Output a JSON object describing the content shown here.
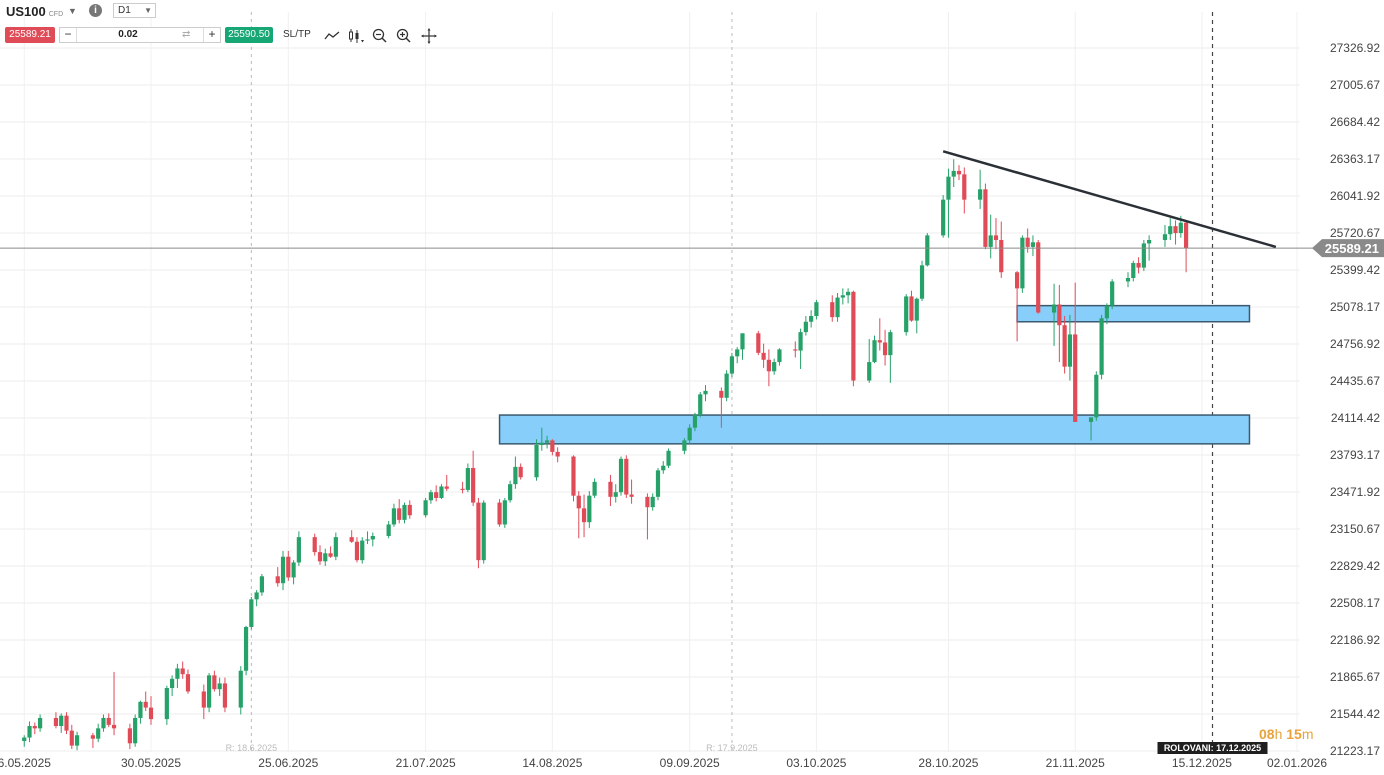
{
  "header": {
    "symbol": "US100",
    "symbol_type": "CFD",
    "timeframe": "D1",
    "sell_price": "25589.21",
    "buy_price": "25590.50",
    "quantity": "0.02",
    "sltp_label": "SL/TP",
    "icons": [
      "info-icon",
      "line-chart-icon",
      "candlestick-icon",
      "zoom-out-icon",
      "zoom-in-icon",
      "crosshair-move-icon"
    ]
  },
  "colors": {
    "bull": "#26a269",
    "bear": "#e04b58",
    "zone_fill": "#87cefa",
    "zone_stroke": "#3c5a6e",
    "trendline": "#2b2f36",
    "sell": "#e04b58",
    "buy": "#17a774",
    "countdown": "#e8a33c"
  },
  "countdown": {
    "hours": "08",
    "h": "h",
    "minutes": "15",
    "m": "m"
  },
  "chart_data": {
    "type": "candlestick",
    "y_axis_ticks": [
      "27326.92",
      "27005.67",
      "26684.42",
      "26363.17",
      "26041.92",
      "25720.67",
      "25399.42",
      "25078.17",
      "24756.92",
      "24435.67",
      "24114.42",
      "23793.17",
      "23471.92",
      "23150.67",
      "22829.42",
      "22508.17",
      "22186.92",
      "21865.67",
      "21544.42",
      "21223.17"
    ],
    "x_axis_ticks": [
      "6.05.2025",
      "30.05.2025",
      "25.06.2025",
      "21.07.2025",
      "14.08.2025",
      "09.09.2025",
      "03.10.2025",
      "28.10.2025",
      "21.11.2025",
      "15.12.2025",
      "02.01.2026"
    ],
    "current_price": 25589.21,
    "current_price_label": "25589.21",
    "markers": [
      {
        "label": "R: 18.6.2025",
        "date": "18.6.2025"
      },
      {
        "label": "R: 17.9.2025",
        "date": "17.9.2025"
      },
      {
        "label": "ROLOVANI: 17.12.2025",
        "date": "17.12.2025"
      }
    ],
    "candles": [
      [
        21310,
        21360,
        21260,
        21340
      ],
      [
        21340,
        21480,
        21300,
        21440
      ],
      [
        21440,
        21470,
        21370,
        21420
      ],
      [
        21420,
        21540,
        21390,
        21510
      ],
      [
        21510,
        21560,
        21420,
        21440
      ],
      [
        21440,
        21550,
        21380,
        21530
      ],
      [
        21530,
        21560,
        21370,
        21400
      ],
      [
        21400,
        21450,
        21240,
        21270
      ],
      [
        21270,
        21390,
        21230,
        21360
      ],
      [
        21360,
        21380,
        21250,
        21330
      ],
      [
        21330,
        21460,
        21300,
        21420
      ],
      [
        21420,
        21540,
        21390,
        21510
      ],
      [
        21510,
        21550,
        21430,
        21450
      ],
      [
        21450,
        21910,
        21360,
        21420
      ],
      [
        21420,
        21460,
        21240,
        21290
      ],
      [
        21290,
        21540,
        21260,
        21510
      ],
      [
        21510,
        21660,
        21460,
        21650
      ],
      [
        21650,
        21740,
        21570,
        21600
      ],
      [
        21600,
        21700,
        21450,
        21500
      ],
      [
        21500,
        21790,
        21450,
        21770
      ],
      [
        21770,
        21880,
        21700,
        21850
      ],
      [
        21850,
        21980,
        21770,
        21940
      ],
      [
        21940,
        22000,
        21850,
        21890
      ],
      [
        21890,
        21930,
        21720,
        21740
      ],
      [
        21740,
        21800,
        21500,
        21600
      ],
      [
        21600,
        21900,
        21560,
        21880
      ],
      [
        21880,
        21920,
        21740,
        21760
      ],
      [
        21760,
        21860,
        21700,
        21810
      ],
      [
        21810,
        21860,
        21560,
        21600
      ],
      [
        21600,
        21960,
        21540,
        21920
      ],
      [
        21920,
        22310,
        21880,
        22300
      ],
      [
        22300,
        22560,
        22280,
        22540
      ],
      [
        22540,
        22620,
        22480,
        22600
      ],
      [
        22600,
        22760,
        22570,
        22740
      ],
      [
        22740,
        22820,
        22650,
        22680
      ],
      [
        22680,
        22960,
        22620,
        22910
      ],
      [
        22910,
        22960,
        22700,
        22730
      ],
      [
        22730,
        22880,
        22670,
        22860
      ],
      [
        22860,
        23130,
        22830,
        23080
      ],
      [
        23080,
        23110,
        22920,
        22950
      ],
      [
        22950,
        23010,
        22840,
        22870
      ],
      [
        22870,
        22980,
        22830,
        22940
      ],
      [
        22940,
        23000,
        22900,
        22910
      ],
      [
        22910,
        23120,
        22880,
        23080
      ],
      [
        23080,
        23140,
        23030,
        23040
      ],
      [
        23040,
        23080,
        22860,
        22880
      ],
      [
        22880,
        23080,
        22850,
        23050
      ],
      [
        23050,
        23130,
        23020,
        23060
      ],
      [
        23060,
        23120,
        23000,
        23090
      ],
      [
        23090,
        23220,
        23070,
        23190
      ],
      [
        23190,
        23370,
        23170,
        23330
      ],
      [
        23330,
        23410,
        23200,
        23230
      ],
      [
        23230,
        23380,
        23200,
        23360
      ],
      [
        23360,
        23400,
        23240,
        23270
      ],
      [
        23270,
        23420,
        23250,
        23400
      ],
      [
        23400,
        23490,
        23370,
        23470
      ],
      [
        23470,
        23530,
        23390,
        23420
      ],
      [
        23420,
        23540,
        23410,
        23520
      ],
      [
        23520,
        23620,
        23480,
        23500
      ],
      [
        23500,
        23560,
        23460,
        23490
      ],
      [
        23490,
        23720,
        23470,
        23680
      ],
      [
        23680,
        23830,
        23350,
        23380
      ],
      [
        23380,
        23420,
        22810,
        22880
      ],
      [
        22880,
        23400,
        22850,
        23380
      ],
      [
        23380,
        23410,
        23170,
        23190
      ],
      [
        23190,
        23420,
        23160,
        23400
      ],
      [
        23400,
        23570,
        23380,
        23540
      ],
      [
        23540,
        23780,
        23500,
        23690
      ],
      [
        23690,
        23720,
        23580,
        23600
      ],
      [
        23600,
        23930,
        23570,
        23880
      ],
      [
        23880,
        24030,
        23830,
        23900
      ],
      [
        23900,
        23960,
        23850,
        23920
      ],
      [
        23920,
        23930,
        23790,
        23820
      ],
      [
        23820,
        23860,
        23730,
        23780
      ],
      [
        23780,
        23790,
        23390,
        23440
      ],
      [
        23440,
        23480,
        23070,
        23330
      ],
      [
        23330,
        23450,
        23080,
        23210
      ],
      [
        23210,
        23480,
        23160,
        23440
      ],
      [
        23440,
        23590,
        23420,
        23560
      ],
      [
        23560,
        23620,
        23350,
        23430
      ],
      [
        23430,
        23540,
        23380,
        23470
      ],
      [
        23470,
        23780,
        23440,
        23760
      ],
      [
        23760,
        23790,
        23420,
        23450
      ],
      [
        23450,
        23580,
        23370,
        23430
      ],
      [
        23430,
        23460,
        23060,
        23340
      ],
      [
        23340,
        23460,
        23310,
        23430
      ],
      [
        23430,
        23680,
        23400,
        23660
      ],
      [
        23660,
        23740,
        23630,
        23700
      ],
      [
        23700,
        23850,
        23680,
        23830
      ],
      [
        23830,
        23940,
        23800,
        23920
      ],
      [
        23920,
        24060,
        23890,
        24030
      ],
      [
        24030,
        24160,
        24000,
        24140
      ],
      [
        24140,
        24340,
        24120,
        24320
      ],
      [
        24320,
        24400,
        24260,
        24350
      ],
      [
        24350,
        24380,
        24030,
        24290
      ],
      [
        24290,
        24530,
        24260,
        24500
      ],
      [
        24500,
        24680,
        24470,
        24650
      ],
      [
        24650,
        24730,
        24590,
        24710
      ],
      [
        24710,
        24840,
        24620,
        24850
      ],
      [
        24850,
        24870,
        24660,
        24680
      ],
      [
        24680,
        24760,
        24550,
        24620
      ],
      [
        24620,
        24710,
        24390,
        24520
      ],
      [
        24520,
        24630,
        24490,
        24600
      ],
      [
        24600,
        24720,
        24570,
        24710
      ],
      [
        24710,
        24780,
        24640,
        24700
      ],
      [
        24700,
        24890,
        24540,
        24860
      ],
      [
        24860,
        25000,
        24830,
        24950
      ],
      [
        24950,
        25050,
        24900,
        25000
      ],
      [
        25000,
        25140,
        24970,
        25120
      ],
      [
        25120,
        25180,
        24950,
        24990
      ],
      [
        24990,
        25200,
        24950,
        25160
      ],
      [
        25160,
        25240,
        25100,
        25180
      ],
      [
        25180,
        25240,
        25110,
        25210
      ],
      [
        25210,
        25220,
        24390,
        24440
      ],
      [
        24440,
        24800,
        24420,
        24600
      ],
      [
        24600,
        24830,
        24590,
        24790
      ],
      [
        24790,
        24980,
        24700,
        24770
      ],
      [
        24770,
        24880,
        24570,
        24660
      ],
      [
        24660,
        24880,
        24420,
        24860
      ],
      [
        24860,
        25190,
        24830,
        25170
      ],
      [
        25170,
        25220,
        24950,
        24960
      ],
      [
        24960,
        25160,
        24850,
        25150
      ],
      [
        25150,
        25480,
        25130,
        25440
      ],
      [
        25440,
        25720,
        25430,
        25700
      ],
      [
        25700,
        26050,
        25680,
        26010
      ],
      [
        26010,
        26280,
        25680,
        26210
      ],
      [
        26210,
        26360,
        26120,
        26260
      ],
      [
        26260,
        26310,
        26180,
        26230
      ],
      [
        26230,
        26290,
        25890,
        26010
      ],
      [
        26010,
        26270,
        25930,
        26100
      ],
      [
        26100,
        26150,
        25580,
        25600
      ],
      [
        25600,
        25880,
        25500,
        25700
      ],
      [
        25700,
        25850,
        25580,
        25660
      ],
      [
        25660,
        25820,
        25330,
        25380
      ],
      [
        25380,
        25390,
        24780,
        25240
      ],
      [
        25240,
        25700,
        25200,
        25680
      ],
      [
        25680,
        25760,
        25550,
        25600
      ],
      [
        25600,
        25700,
        25520,
        25640
      ],
      [
        25640,
        25660,
        25020,
        25030
      ],
      [
        25030,
        25280,
        24740,
        25100
      ],
      [
        25100,
        25270,
        24600,
        24920
      ],
      [
        24920,
        25000,
        24500,
        24560
      ],
      [
        24560,
        25010,
        24440,
        24840
      ],
      [
        24840,
        25290,
        24100,
        24080
      ],
      [
        24080,
        24110,
        23920,
        24120
      ],
      [
        24120,
        24520,
        24090,
        24490
      ],
      [
        24490,
        25010,
        24450,
        24980
      ],
      [
        24980,
        25110,
        24930,
        25090
      ],
      [
        25090,
        25320,
        25060,
        25300
      ],
      [
        25300,
        25380,
        25250,
        25330
      ],
      [
        25330,
        25480,
        25300,
        25460
      ],
      [
        25460,
        25510,
        25370,
        25420
      ],
      [
        25420,
        25660,
        25390,
        25630
      ],
      [
        25630,
        25700,
        25480,
        25660
      ],
      [
        25660,
        25790,
        25600,
        25710
      ],
      [
        25710,
        25850,
        25660,
        25780
      ],
      [
        25780,
        25830,
        25620,
        25720
      ],
      [
        25720,
        25870,
        25680,
        25810
      ],
      [
        25810,
        25820,
        25380,
        25589.21
      ]
    ],
    "support_zones": [
      {
        "low": 23890,
        "high": 24140,
        "from": "04.08.2025",
        "to": "24.12.2025"
      },
      {
        "low": 24950,
        "high": 25090,
        "from": "10.11.2025",
        "to": "24.12.2025"
      }
    ],
    "trendline": {
      "from": {
        "date": "27.10.2025",
        "value": 26430
      },
      "to": {
        "date": "29.12.2025",
        "value": 25600
      }
    },
    "grid": true
  }
}
